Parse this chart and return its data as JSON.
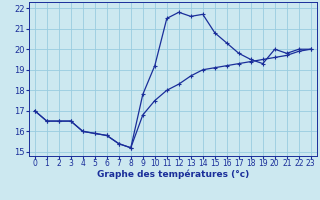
{
  "xlabel": "Graphe des températures (°c)",
  "bg_color": "#cce8f0",
  "grid_color": "#99cce0",
  "line_color": "#1a2e9a",
  "xlim": [
    -0.5,
    23.5
  ],
  "ylim": [
    14.8,
    22.3
  ],
  "xticks": [
    0,
    1,
    2,
    3,
    4,
    5,
    6,
    7,
    8,
    9,
    10,
    11,
    12,
    13,
    14,
    15,
    16,
    17,
    18,
    19,
    20,
    21,
    22,
    23
  ],
  "yticks": [
    15,
    16,
    17,
    18,
    19,
    20,
    21,
    22
  ],
  "hours": [
    0,
    1,
    2,
    3,
    4,
    5,
    6,
    7,
    8,
    9,
    10,
    11,
    12,
    13,
    14,
    15,
    16,
    17,
    18,
    19,
    20,
    21,
    22,
    23
  ],
  "temp1": [
    17.0,
    16.5,
    16.5,
    16.5,
    16.0,
    15.9,
    15.8,
    15.4,
    15.2,
    17.8,
    19.2,
    21.5,
    21.8,
    21.6,
    21.7,
    20.8,
    20.3,
    19.8,
    19.5,
    19.3,
    20.0,
    19.8,
    20.0,
    20.0
  ],
  "temp2": [
    17.0,
    16.5,
    16.5,
    16.5,
    16.0,
    15.9,
    15.8,
    15.4,
    15.2,
    16.8,
    17.5,
    18.0,
    18.3,
    18.7,
    19.0,
    19.1,
    19.2,
    19.3,
    19.4,
    19.5,
    19.6,
    19.7,
    19.9,
    20.0
  ],
  "xlabel_fontsize": 6.5,
  "tick_fontsize": 5.5
}
